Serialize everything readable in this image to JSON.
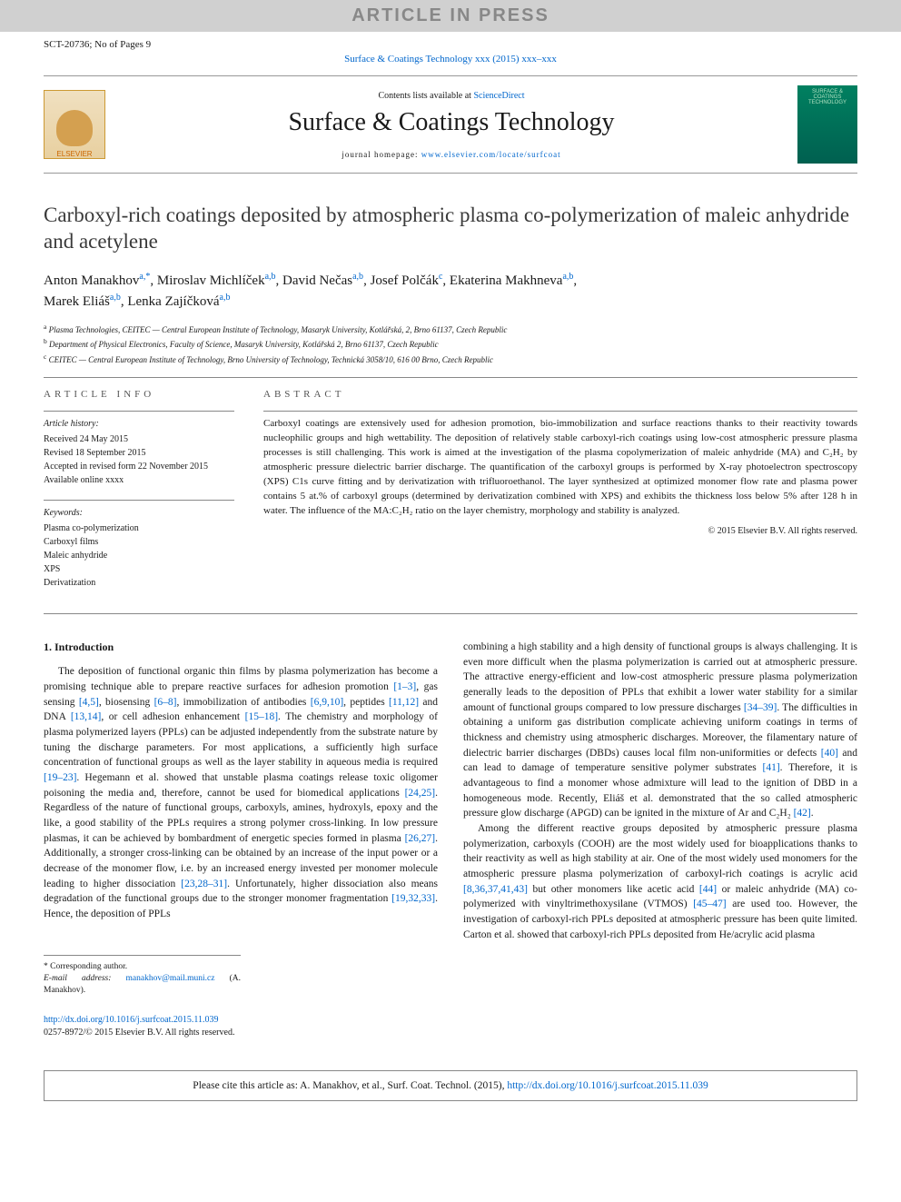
{
  "banner": "ARTICLE IN PRESS",
  "headerLine": "SCT-20736; No of Pages 9",
  "journalRef": "Surface & Coatings Technology xxx (2015) xxx–xxx",
  "masthead": {
    "elsevier": "ELSEVIER",
    "contentsPrefix": "Contents lists available at ",
    "contentsLink": "ScienceDirect",
    "journalTitle": "Surface & Coatings Technology",
    "homepagePrefix": "journal homepage: ",
    "homepageLink": "www.elsevier.com/locate/surfcoat",
    "coverText": "SURFACE & COATINGS TECHNOLOGY"
  },
  "title": "Carboxyl-rich coatings deposited by atmospheric plasma co-polymerization of maleic anhydride and acetylene",
  "authorsLine1": "Anton Manakhov",
  "authorsSup1": "a,*",
  "authorsSep1": ", Miroslav Michlíček",
  "authorsSup2": "a,b",
  "authorsSep2": ", David Nečas",
  "authorsSup3": "a,b",
  "authorsSep3": ", Josef Polčák",
  "authorsSup4": "c",
  "authorsSep4": ", Ekaterina Makhneva",
  "authorsSup5": "a,b",
  "authorsSep5": ",",
  "authorsLine2": "Marek Eliáš",
  "authorsSup6": "a,b",
  "authorsSep6": ", Lenka Zajíčková",
  "authorsSup7": "a,b",
  "affiliations": {
    "a": "Plasma Technologies, CEITEC — Central European Institute of Technology, Masaryk University, Kotlářská, 2, Brno 61137, Czech Republic",
    "b": "Department of Physical Electronics, Faculty of Science, Masaryk University, Kotlářská 2, Brno 61137, Czech Republic",
    "c": "CEITEC — Central European Institute of Technology, Brno University of Technology, Technická 3058/10, 616 00 Brno, Czech Republic"
  },
  "infoLabel": "article info",
  "absLabel": "abstract",
  "history": {
    "title": "Article history:",
    "received": "Received 24 May 2015",
    "revised": "Revised 18 September 2015",
    "accepted": "Accepted in revised form 22 November 2015",
    "online": "Available online xxxx"
  },
  "keywords": {
    "title": "Keywords:",
    "k1": "Plasma co-polymerization",
    "k2": "Carboxyl films",
    "k3": "Maleic anhydride",
    "k4": "XPS",
    "k5": "Derivatization"
  },
  "abstract": "Carboxyl coatings are extensively used for adhesion promotion, bio-immobilization and surface reactions thanks to their reactivity towards nucleophilic groups and high wettability. The deposition of relatively stable carboxyl-rich coatings using low-cost atmospheric pressure plasma processes is still challenging. This work is aimed at the investigation of the plasma copolymerization of maleic anhydride (MA) and C₂H₂ by atmospheric pressure dielectric barrier discharge. The quantification of the carboxyl groups is performed by X-ray photoelectron spectroscopy (XPS) C1s curve fitting and by derivatization with trifluoroethanol. The layer synthesized at optimized monomer flow rate and plasma power contains 5 at.% of carboxyl groups (determined by derivatization combined with XPS) and exhibits the thickness loss below 5% after 128 h in water. The influence of the MA:C₂H₂ ratio on the layer chemistry, morphology and stability is analyzed.",
  "copyright": "© 2015 Elsevier B.V. All rights reserved.",
  "introHeading": "1. Introduction",
  "col1p1a": "The deposition of functional organic thin films by plasma polymerization has become a promising technique able to prepare reactive surfaces for adhesion promotion ",
  "col1r1": "[1–3]",
  "col1p1b": ", gas sensing ",
  "col1r2": "[4,5]",
  "col1p1c": ", biosensing ",
  "col1r3": "[6–8]",
  "col1p1d": ", immobilization of antibodies ",
  "col1r4": "[6,9,10]",
  "col1p1e": ", peptides ",
  "col1r5": "[11,12]",
  "col1p1f": " and DNA ",
  "col1r6": "[13,14]",
  "col1p1g": ", or cell adhesion enhancement ",
  "col1r7": "[15–18]",
  "col1p1h": ". The chemistry and morphology of plasma polymerized layers (PPLs) can be adjusted independently from the substrate nature by tuning the discharge parameters. For most applications, a sufficiently high surface concentration of functional groups as well as the layer stability in aqueous media is required ",
  "col1r8": "[19–23]",
  "col1p1i": ". Hegemann et al. showed that unstable plasma coatings release toxic oligomer poisoning the media and, therefore, cannot be used for biomedical applications ",
  "col1r9": "[24,25]",
  "col1p1j": ". Regardless of the nature of functional groups, carboxyls, amines, hydroxyls, epoxy and the like, a good stability of the PPLs requires a strong polymer cross-linking. In low pressure plasmas, it can be achieved by bombardment of energetic species formed in plasma ",
  "col1r10": "[26,27]",
  "col1p1k": ". Additionally, a stronger cross-linking can be obtained by an increase of the input power or a decrease of the monomer flow, i.e. by an increased energy invested per monomer molecule leading to higher dissociation ",
  "col1r11": "[23,28–31]",
  "col1p1l": ". Unfortunately, higher dissociation also means degradation of the functional groups due to the stronger monomer fragmentation ",
  "col1r12": "[19,32,33]",
  "col1p1m": ". Hence, the deposition of PPLs ",
  "col2p1a": "combining a high stability and a high density of functional groups is always challenging. It is even more difficult when the plasma polymerization is carried out at atmospheric pressure. The attractive energy-efficient and low-cost atmospheric pressure plasma polymerization generally leads to the deposition of PPLs that exhibit a lower water stability for a similar amount of functional groups compared to low pressure discharges ",
  "col2r1": "[34–39]",
  "col2p1b": ". The difficulties in obtaining a uniform gas distribution complicate achieving uniform coatings in terms of thickness and chemistry using atmospheric discharges. Moreover, the filamentary nature of dielectric barrier discharges (DBDs) causes local film non-uniformities or defects ",
  "col2r2": "[40]",
  "col2p1c": " and can lead to damage of temperature sensitive polymer substrates ",
  "col2r3": "[41]",
  "col2p1d": ". Therefore, it is advantageous to find a monomer whose admixture will lead to the ignition of DBD in a homogeneous mode. Recently, Eliáš et al. demonstrated that the so called atmospheric pressure glow discharge (APGD) can be ignited in the mixture of Ar and C₂H₂ ",
  "col2r4": "[42]",
  "col2p1e": ".",
  "col2p2a": "Among the different reactive groups deposited by atmospheric pressure plasma polymerization, carboxyls (COOH) are the most widely used for bioapplications thanks to their reactivity as well as high stability at air. One of the most widely used monomers for the atmospheric pressure plasma polymerization of carboxyl-rich coatings is acrylic acid ",
  "col2r5": "[8,36,37,41,43]",
  "col2p2b": " but other monomers like acetic acid ",
  "col2r6": "[44]",
  "col2p2c": " or maleic anhydride (MA) co-polymerized with vinyltrimethoxysilane (VTMOS) ",
  "col2r7": "[45–47]",
  "col2p2d": " are used too. However, the investigation of carboxyl-rich PPLs deposited at atmospheric pressure has been quite limited. Carton et al. showed that carboxyl-rich PPLs deposited from He/acrylic acid plasma",
  "corr": {
    "star": "* Corresponding author.",
    "emailLabel": "E-mail address: ",
    "email": "manakhov@mail.muni.cz",
    "emailSuffix": " (A. Manakhov)."
  },
  "doi": {
    "link": "http://dx.doi.org/10.1016/j.surfcoat.2015.11.039",
    "issn": "0257-8972/© 2015 Elsevier B.V. All rights reserved."
  },
  "citeBox": {
    "prefix": "Please cite this article as: A. Manakhov, et al., Surf. Coat. Technol. (2015), ",
    "link": "http://dx.doi.org/10.1016/j.surfcoat.2015.11.039"
  },
  "colors": {
    "link": "#0066cc",
    "bannerBg": "#d0d0d0",
    "coverBg": "#008060"
  }
}
